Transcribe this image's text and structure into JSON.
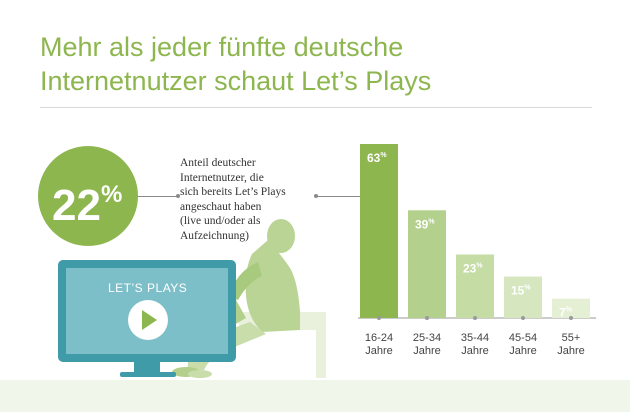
{
  "title_lines": [
    "Mehr als jeder fünfte deutsche",
    "Internetnutzer schaut Let’s Plays"
  ],
  "highlight": {
    "value": "22",
    "unit": "%"
  },
  "description_lines": [
    "Anteil deutscher",
    "Internetnutzer, die",
    "sich bereits Let’s Plays",
    "angeschaut haben",
    "(live und/oder als",
    "Aufzeichnung)"
  ],
  "monitor_label": "LET’S PLAYS",
  "colors": {
    "accent": "#8db64f",
    "monitor": "#3f9ba7",
    "bars": [
      "#8db64f",
      "#b3d08c",
      "#c5dca4",
      "#d6e7bf",
      "#e4efd4"
    ]
  },
  "chart_data": {
    "type": "bar",
    "categories": [
      "16-24 Jahre",
      "25-34 Jahre",
      "35-44 Jahre",
      "45-54 Jahre",
      "55+ Jahre"
    ],
    "category_lines": [
      [
        "16-24",
        "Jahre"
      ],
      [
        "25-34",
        "Jahre"
      ],
      [
        "35-44",
        "Jahre"
      ],
      [
        "45-54",
        "Jahre"
      ],
      [
        "55+",
        "Jahre"
      ]
    ],
    "values": [
      63,
      39,
      23,
      15,
      7
    ],
    "value_unit": "%",
    "ylim": [
      0,
      63
    ],
    "grid": false,
    "title": "",
    "xlabel": "",
    "ylabel": ""
  }
}
